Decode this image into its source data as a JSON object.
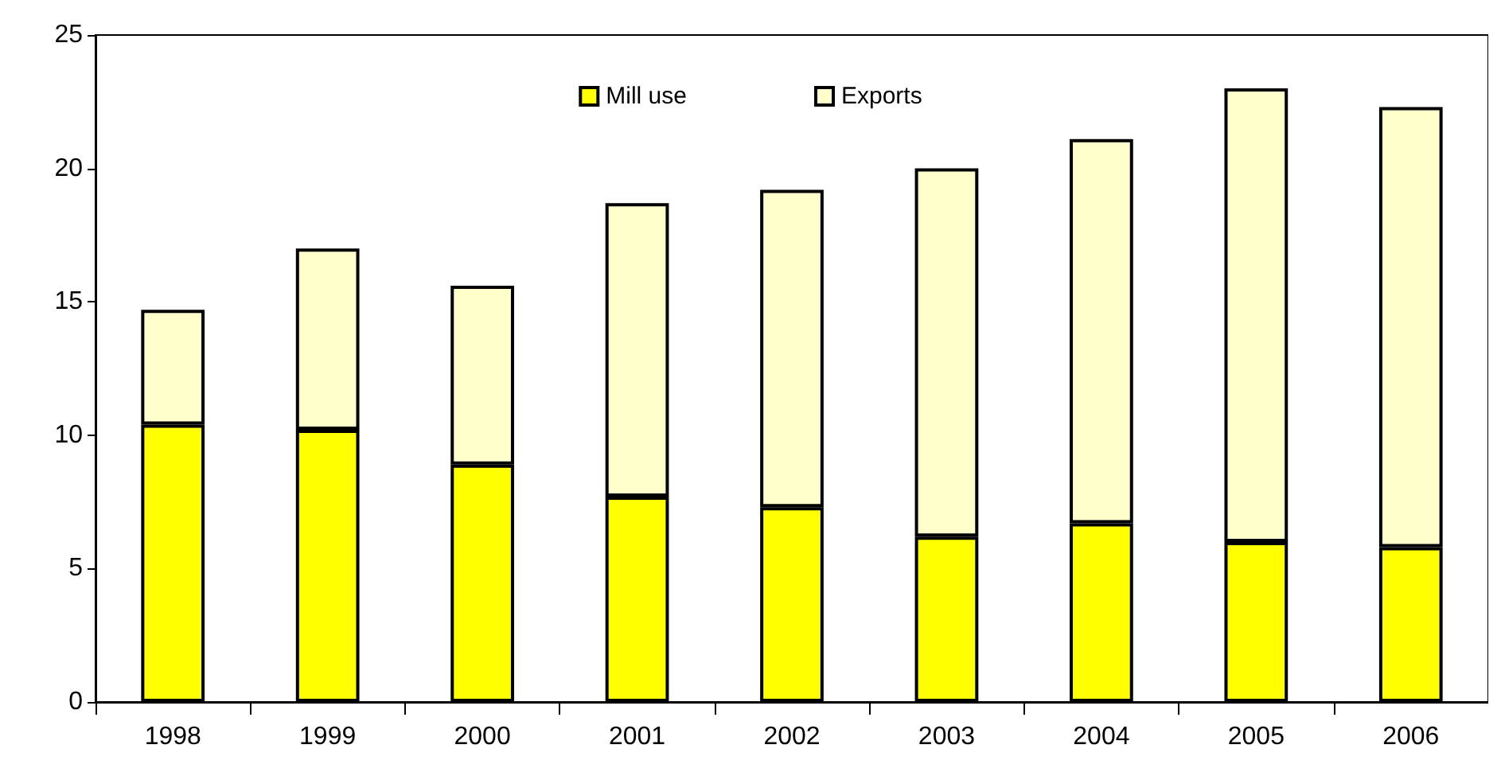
{
  "chart_data": {
    "type": "bar",
    "stacked": true,
    "categories": [
      "1998",
      "1999",
      "2000",
      "2001",
      "2002",
      "2003",
      "2004",
      "2005",
      "2006"
    ],
    "series": [
      {
        "name": "Mill use",
        "color": "#ffff00",
        "values": [
          10.4,
          10.2,
          8.9,
          7.7,
          7.3,
          6.2,
          6.7,
          6.0,
          5.8
        ]
      },
      {
        "name": "Exports",
        "color": "#ffffcc",
        "values": [
          4.3,
          6.8,
          6.7,
          11.0,
          11.9,
          13.8,
          14.4,
          17.0,
          16.5
        ]
      }
    ],
    "ylim": [
      0,
      25
    ],
    "yticks": [
      0,
      5,
      10,
      15,
      20,
      25
    ],
    "grid": false,
    "legend": "top"
  }
}
